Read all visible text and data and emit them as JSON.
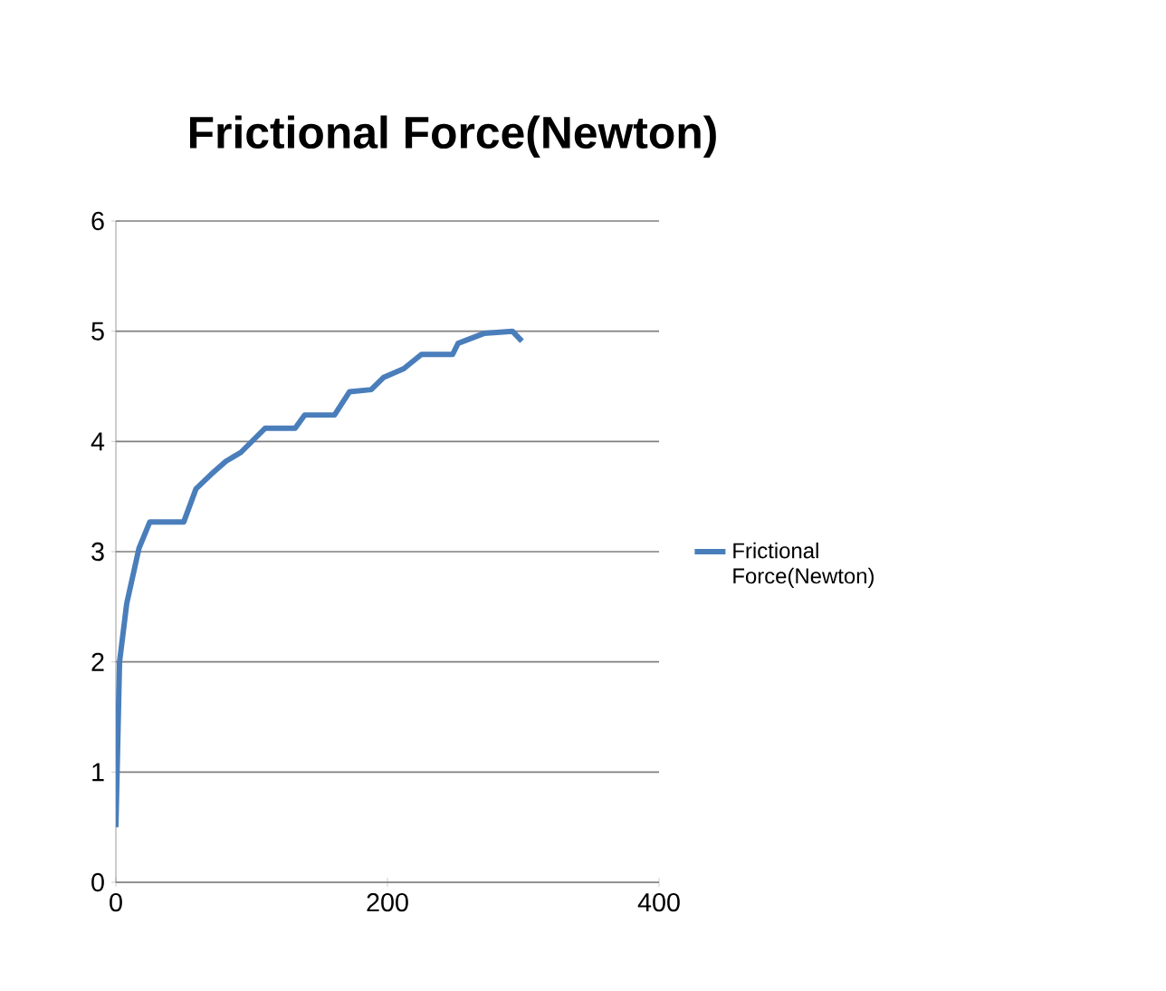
{
  "chart_data": {
    "type": "line",
    "title": "Frictional Force(Newton)",
    "series": [
      {
        "name": "Frictional Force(Newton)",
        "color": "#4a7ebb",
        "x": [
          0,
          2.7,
          8,
          17,
          25,
          50,
          59,
          70,
          81,
          92,
          110,
          132,
          139,
          161,
          172,
          188,
          197,
          212,
          225,
          248,
          252,
          271,
          292,
          299
        ],
        "values": [
          0.5,
          2.0,
          2.53,
          3.03,
          3.27,
          3.27,
          3.57,
          3.7,
          3.82,
          3.9,
          4.12,
          4.12,
          4.24,
          4.24,
          4.45,
          4.47,
          4.58,
          4.66,
          4.79,
          4.79,
          4.89,
          4.98,
          5.0,
          4.91
        ]
      }
    ],
    "xlim": [
      0,
      400
    ],
    "xticks": [
      0,
      200,
      400
    ],
    "ylim": [
      0,
      6
    ],
    "yticks": [
      0,
      1,
      2,
      3,
      4,
      5,
      6
    ],
    "grid": "y",
    "legend": "right",
    "marker": "none",
    "line_style": "solid"
  }
}
